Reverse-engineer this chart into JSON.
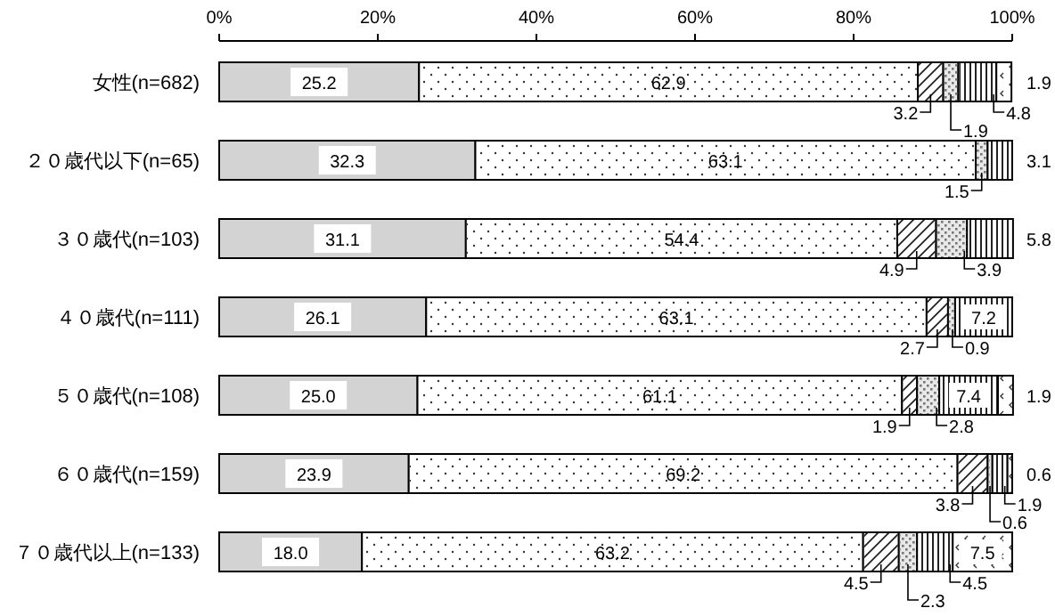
{
  "chart_data": {
    "type": "bar",
    "orientation": "horizontal",
    "stacked": true,
    "categories": [
      "女性(n=682)",
      "２０歳代以下(n=65)",
      "３０歳代(n=103)",
      "４０歳代(n=111)",
      "５０歳代(n=108)",
      "６０歳代(n=159)",
      "７０歳代以上(n=133)"
    ],
    "xlim": [
      0,
      100
    ],
    "xticks": [
      {
        "value": 0,
        "label": "0%"
      },
      {
        "value": 20,
        "label": "20%"
      },
      {
        "value": 40,
        "label": "40%"
      },
      {
        "value": 60,
        "label": "60%"
      },
      {
        "value": 80,
        "label": "80%"
      },
      {
        "value": 100,
        "label": "100%"
      }
    ],
    "series": [
      {
        "color": "#d3d3d3",
        "values": [
          25.2,
          32.3,
          31.1,
          26.1,
          25.0,
          23.9,
          18.0
        ],
        "value_labels": [
          "25.2",
          "32.3",
          "31.1",
          "26.1",
          "25.0",
          "23.9",
          "18.0"
        ]
      },
      {
        "color": "#ffffff",
        "values": [
          62.9,
          63.1,
          54.4,
          63.1,
          61.1,
          69.2,
          63.2
        ],
        "value_labels": [
          "62.9",
          "63.1",
          "54.4",
          "63.1",
          "61.1",
          "69.2",
          "63.2"
        ]
      },
      {
        "color": "#ffffff",
        "values": [
          3.2,
          null,
          4.9,
          2.7,
          1.9,
          3.8,
          4.5
        ],
        "value_labels": [
          "3.2",
          null,
          "4.9",
          "2.7",
          "1.9",
          "3.8",
          "4.5"
        ]
      },
      {
        "color": "#e8e8e8",
        "values": [
          1.9,
          1.5,
          3.9,
          0.9,
          2.8,
          0.6,
          2.3
        ],
        "value_labels": [
          "1.9",
          "1.5",
          "3.9",
          "0.9",
          "2.8",
          "0.6",
          "2.3"
        ]
      },
      {
        "color": "#ffffff",
        "values": [
          4.8,
          3.1,
          5.8,
          7.2,
          7.4,
          1.9,
          4.5
        ],
        "value_labels": [
          "4.8",
          "3.1",
          "5.8",
          "7.2",
          "7.4",
          "1.9",
          "4.5"
        ]
      },
      {
        "color": "#ffffff",
        "values": [
          1.9,
          null,
          null,
          null,
          1.9,
          0.6,
          7.5
        ],
        "value_labels": [
          "1.9",
          null,
          null,
          null,
          "1.9",
          "0.6",
          "7.5"
        ]
      }
    ]
  }
}
